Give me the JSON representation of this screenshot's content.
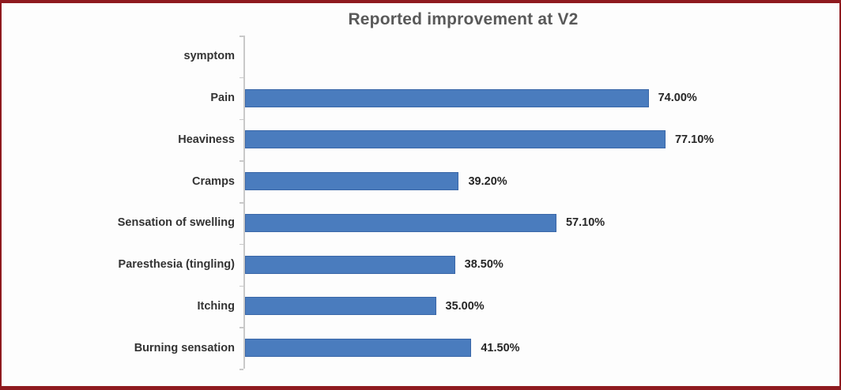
{
  "chart_data": {
    "type": "bar",
    "orientation": "horizontal",
    "title": "Reported improvement at V2",
    "categories": [
      "symptom",
      "Pain",
      "Heaviness",
      "Cramps",
      "Sensation of swelling",
      "Paresthesia (tingling)",
      "Itching",
      "Burning sensation"
    ],
    "values": [
      null,
      74.0,
      77.1,
      39.2,
      57.1,
      38.5,
      35.0,
      41.5
    ],
    "value_labels": [
      "",
      "74.00%",
      "77.10%",
      "39.20%",
      "57.10%",
      "38.50%",
      "35.00%",
      "41.50%"
    ],
    "xlabel": "",
    "ylabel": "",
    "grid": false,
    "legend": false,
    "colors": {
      "bar": "#4a7cbe",
      "bar_border": "#3a67a8",
      "axis": "#c9c9c9",
      "title": "#595959",
      "category_text": "#333333",
      "value_text": "#262626",
      "frame_border": "#8f1a1f",
      "background": "#fdfdfd"
    }
  }
}
